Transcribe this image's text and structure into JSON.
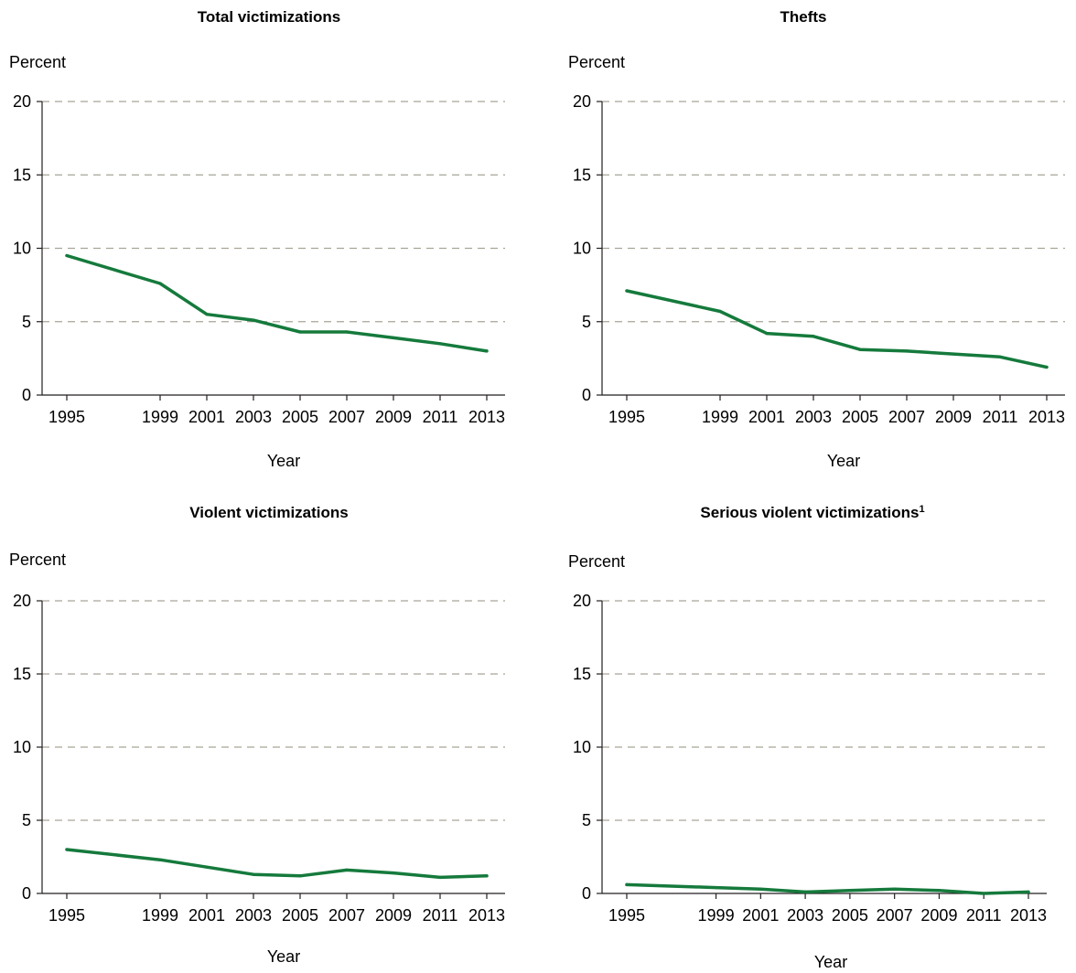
{
  "colors": {
    "series": "#157a3c",
    "grid": "#a7a596",
    "axis": "#231f20"
  },
  "chart_data": [
    {
      "type": "line",
      "title": "Total victimizations",
      "title_sup": "",
      "ylabel": "Percent",
      "xlabel": "Year",
      "ylim": [
        0,
        20
      ],
      "yticks": [
        0,
        5,
        10,
        15,
        20
      ],
      "grid": true,
      "x": [
        1995,
        1999,
        2001,
        2003,
        2005,
        2007,
        2009,
        2011,
        2013
      ],
      "xtick_labels": [
        "1995",
        "1999",
        "2001",
        "2003",
        "2005",
        "2007",
        "2009",
        "2011",
        "2013"
      ],
      "series": [
        {
          "values": [
            9.5,
            7.6,
            5.5,
            5.1,
            4.3,
            4.3,
            3.9,
            3.5,
            3.0
          ]
        }
      ]
    },
    {
      "type": "line",
      "title": "Thefts",
      "title_sup": "",
      "ylabel": "Percent",
      "xlabel": "Year",
      "ylim": [
        0,
        20
      ],
      "yticks": [
        0,
        5,
        10,
        15,
        20
      ],
      "grid": true,
      "x": [
        1995,
        1999,
        2001,
        2003,
        2005,
        2007,
        2009,
        2011,
        2013
      ],
      "xtick_labels": [
        "1995",
        "1999",
        "2001",
        "2003",
        "2005",
        "2007",
        "2009",
        "2011",
        "2013"
      ],
      "series": [
        {
          "values": [
            7.1,
            5.7,
            4.2,
            4.0,
            3.1,
            3.0,
            2.8,
            2.6,
            1.9
          ]
        }
      ]
    },
    {
      "type": "line",
      "title": "Violent victimizations",
      "title_sup": "",
      "ylabel": "Percent",
      "xlabel": "Year",
      "ylim": [
        0,
        20
      ],
      "yticks": [
        0,
        5,
        10,
        15,
        20
      ],
      "grid": true,
      "x": [
        1995,
        1999,
        2001,
        2003,
        2005,
        2007,
        2009,
        2011,
        2013
      ],
      "xtick_labels": [
        "1995",
        "1999",
        "2001",
        "2003",
        "2005",
        "2007",
        "2009",
        "2011",
        "2013"
      ],
      "series": [
        {
          "values": [
            3.0,
            2.3,
            1.8,
            1.3,
            1.2,
            1.6,
            1.4,
            1.1,
            1.2
          ]
        }
      ]
    },
    {
      "type": "line",
      "title": "Serious violent victimizations",
      "title_sup": "1",
      "ylabel": "Percent",
      "xlabel": "Year",
      "ylim": [
        0,
        20
      ],
      "yticks": [
        0,
        5,
        10,
        15,
        20
      ],
      "grid": true,
      "x": [
        1995,
        1999,
        2001,
        2003,
        2005,
        2007,
        2009,
        2011,
        2013
      ],
      "xtick_labels": [
        "1995",
        "1999",
        "2001",
        "2003",
        "2005",
        "2007",
        "2009",
        "2011",
        "2013"
      ],
      "series": [
        {
          "values": [
            0.6,
            0.4,
            0.3,
            0.1,
            0.2,
            0.3,
            0.2,
            0.0,
            0.1
          ]
        }
      ]
    }
  ]
}
